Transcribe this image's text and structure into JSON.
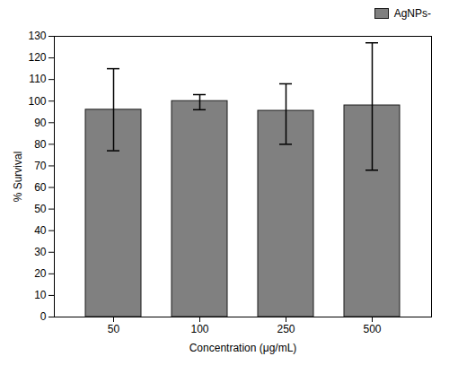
{
  "chart_data": {
    "type": "bar",
    "categories": [
      "50",
      "100",
      "250",
      "500"
    ],
    "series": [
      {
        "name": "AgNPs-",
        "color": "#808080",
        "values": [
          96.0,
          100.0,
          95.5,
          98.0
        ],
        "errors_upper": [
          19.0,
          3.0,
          12.5,
          29.0
        ],
        "errors_lower": [
          19.0,
          4.0,
          15.5,
          30.0
        ]
      }
    ],
    "xlabel": "Concentration (μg/mL)",
    "ylabel": "% Survival",
    "ylim": [
      0,
      130
    ],
    "yticks": [
      0,
      10,
      20,
      30,
      40,
      50,
      60,
      70,
      80,
      90,
      100,
      110,
      120,
      130
    ],
    "grid": false,
    "legend": "upper right"
  }
}
